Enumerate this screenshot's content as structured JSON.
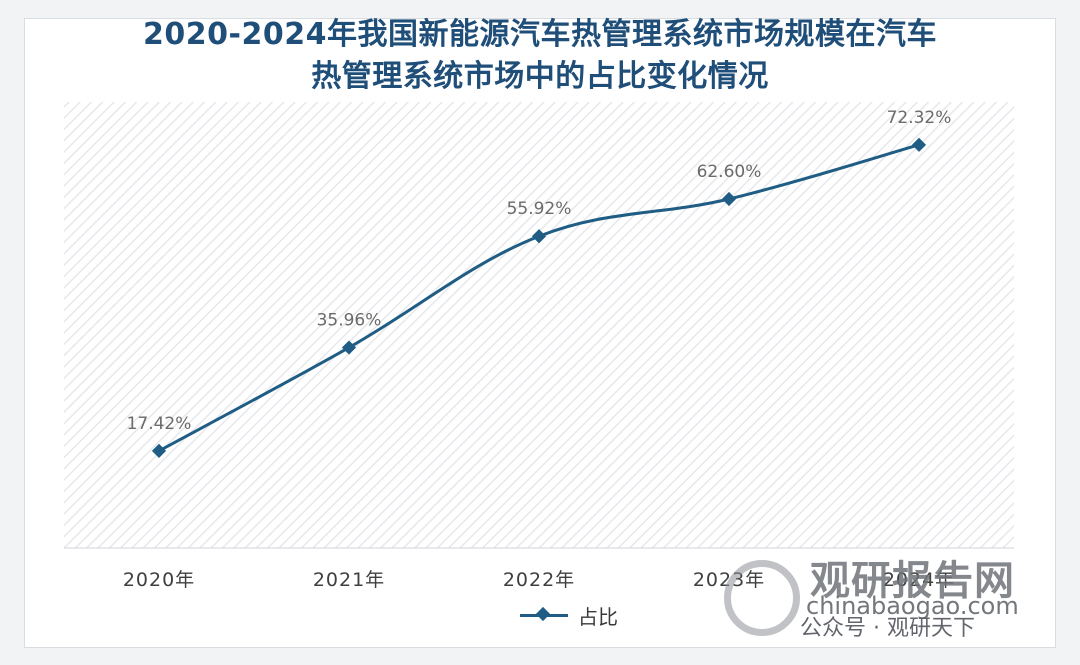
{
  "title_line1": "2020-2024年我国新能源汽车热管理系统市场规模在汽车",
  "title_line2": "热管理系统市场中的占比变化情况",
  "colors": {
    "title": "#1f4e79",
    "series": "#1f5d85",
    "plot_hatch": "#e4e6ea",
    "label": "#6b6b6b"
  },
  "chart_data": {
    "type": "line",
    "title": "2020-2024年我国新能源汽车热管理系统市场规模在汽车热管理系统市场中的占比变化情况",
    "categories": [
      "2020年",
      "2021年",
      "2022年",
      "2023年",
      "2024年"
    ],
    "series": [
      {
        "name": "占比",
        "values": [
          17.42,
          35.96,
          55.92,
          62.6,
          72.32
        ],
        "labels": [
          "17.42%",
          "35.96%",
          "55.92%",
          "62.60%",
          "72.32%"
        ]
      }
    ],
    "ylim": [
      0,
      80
    ],
    "xlabel": "",
    "ylabel": "",
    "legend_position": "bottom",
    "grid": false,
    "smooth": true
  },
  "watermarks": {
    "center_cn": "观研报告网",
    "center_en": "chinabaogao.com",
    "corner_cn": "观研报告网",
    "corner_en": "chinabaogao.com",
    "corner_pub": "公众号 · 观研天下"
  }
}
